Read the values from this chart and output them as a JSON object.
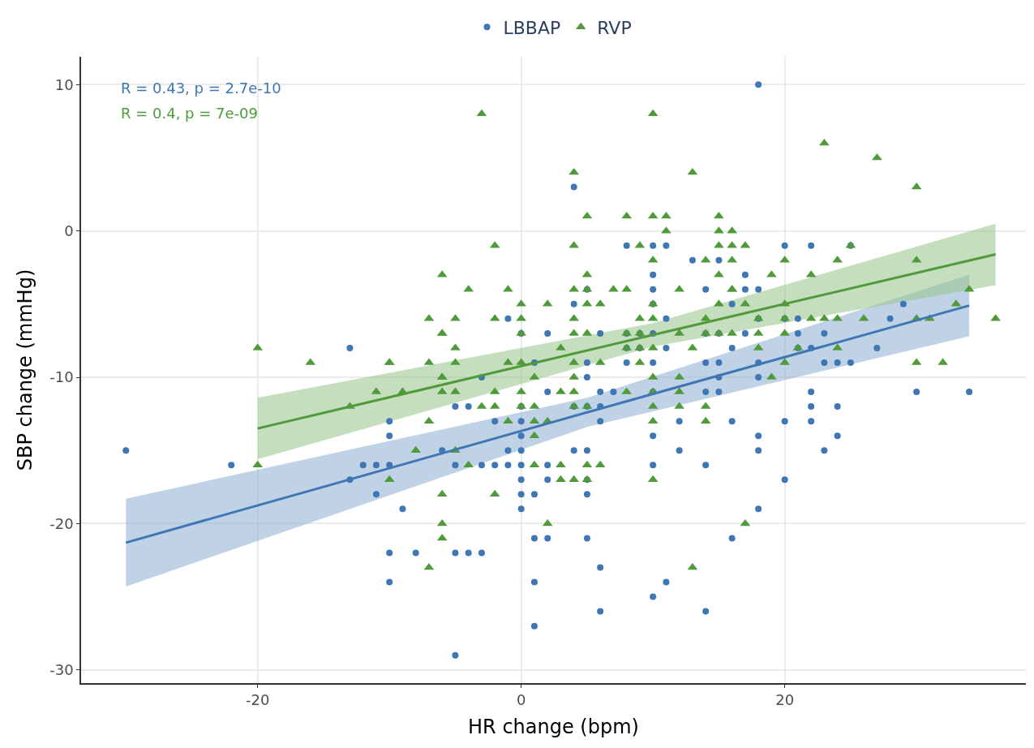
{
  "chart_data": {
    "type": "scatter",
    "xlabel": "HR change (bpm)",
    "ylabel": "SBP change (mmHg)",
    "xlim": [
      -33.4,
      38.3
    ],
    "xticks": [
      -20,
      0,
      20
    ],
    "ylim": [
      -30.9,
      11.9
    ],
    "yticks": [
      -30,
      -20,
      -10,
      0,
      10
    ],
    "grid": true,
    "legend": "top",
    "annotations": [
      "R = 0.43, p = 2.7e-10",
      "R = 0.4, p = 7e-09"
    ],
    "series": [
      {
        "name": "LBBAP",
        "color": "#3f76b4",
        "marker": "circle",
        "x": [
          -30,
          -22,
          -13,
          -13,
          -12,
          -11,
          -11,
          -10,
          -10,
          -10,
          -10,
          -10,
          -9,
          -8,
          -6,
          -5,
          -5,
          -5,
          -5,
          -4,
          -4,
          -3,
          -3,
          -3,
          -2,
          -2,
          -1,
          -1,
          -1,
          0,
          0,
          0,
          0,
          0,
          0,
          0,
          0,
          0,
          1,
          1,
          1,
          1,
          1,
          2,
          2,
          2,
          2,
          2,
          4,
          4,
          4,
          4,
          5,
          5,
          5,
          5,
          5,
          5,
          5,
          5,
          6,
          6,
          6,
          6,
          6,
          6,
          7,
          8,
          8,
          8,
          8,
          9,
          9,
          10,
          10,
          10,
          10,
          10,
          10,
          10,
          10,
          10,
          10,
          11,
          11,
          11,
          11,
          12,
          12,
          13,
          14,
          14,
          14,
          14,
          14,
          14,
          15,
          15,
          15,
          15,
          15,
          16,
          16,
          16,
          16,
          17,
          17,
          17,
          18,
          18,
          18,
          18,
          18,
          18,
          18,
          18,
          20,
          20,
          20,
          20,
          21,
          21,
          21,
          22,
          22,
          22,
          22,
          22,
          23,
          23,
          23,
          24,
          24,
          24,
          25,
          25,
          27,
          28,
          29,
          30,
          34
        ],
        "values": [
          -15,
          -16,
          -8,
          -17,
          -16,
          -16,
          -18,
          -13,
          -14,
          -16,
          -22,
          -24,
          -19,
          -22,
          -15,
          -12,
          -16,
          -22,
          -29,
          -12,
          -22,
          -10,
          -16,
          -22,
          -13,
          -16,
          -6,
          -15,
          -16,
          -7,
          -12,
          -13,
          -14,
          -15,
          -16,
          -17,
          -18,
          -19,
          -9,
          -18,
          -21,
          -24,
          -27,
          -7,
          -11,
          -16,
          -17,
          -21,
          3,
          -5,
          -12,
          -15,
          -4,
          -9,
          -10,
          -12,
          -15,
          -17,
          -18,
          -21,
          -7,
          -11,
          -12,
          -13,
          -23,
          -26,
          -11,
          -1,
          -7,
          -8,
          -9,
          -7,
          -8,
          -1,
          -3,
          -4,
          -5,
          -7,
          -9,
          -11,
          -14,
          -16,
          -25,
          -1,
          -6,
          -8,
          -24,
          -13,
          -15,
          -2,
          -4,
          -7,
          -9,
          -11,
          -16,
          -26,
          -2,
          -7,
          -9,
          -10,
          -11,
          -5,
          -8,
          -13,
          -21,
          -3,
          -4,
          -7,
          10,
          -4,
          -6,
          -9,
          -10,
          -14,
          -15,
          -19,
          -1,
          -6,
          -13,
          -17,
          -6,
          -7,
          -8,
          -1,
          -8,
          -11,
          -12,
          -13,
          -7,
          -9,
          -15,
          -9,
          -12,
          -14,
          -1,
          -9,
          -8,
          -6,
          -5,
          -11,
          -11
        ]
      },
      {
        "name": "RVP",
        "color": "#4f9a3a",
        "marker": "triangle",
        "x": [
          -20,
          -20,
          -16,
          -13,
          -11,
          -10,
          -10,
          -10,
          -9,
          -8,
          -7,
          -7,
          -7,
          -7,
          -6,
          -6,
          -6,
          -6,
          -6,
          -6,
          -6,
          -6,
          -6,
          -5,
          -5,
          -5,
          -5,
          -5,
          -4,
          -4,
          -3,
          -3,
          -2,
          -2,
          -2,
          -2,
          -2,
          -1,
          -1,
          -1,
          0,
          0,
          0,
          0,
          0,
          0,
          1,
          1,
          1,
          1,
          1,
          2,
          2,
          2,
          3,
          3,
          3,
          3,
          4,
          4,
          4,
          4,
          4,
          4,
          4,
          4,
          4,
          4,
          5,
          5,
          5,
          5,
          5,
          5,
          5,
          5,
          6,
          6,
          6,
          7,
          8,
          8,
          8,
          8,
          8,
          9,
          9,
          9,
          9,
          9,
          10,
          10,
          10,
          10,
          10,
          10,
          10,
          10,
          10,
          10,
          10,
          11,
          11,
          12,
          12,
          12,
          12,
          12,
          13,
          13,
          13,
          14,
          14,
          14,
          14,
          14,
          15,
          15,
          15,
          15,
          15,
          15,
          16,
          16,
          16,
          16,
          16,
          16,
          17,
          17,
          17,
          18,
          18,
          18,
          19,
          19,
          20,
          20,
          20,
          20,
          20,
          21,
          22,
          22,
          23,
          23,
          24,
          24,
          24,
          25,
          26,
          27,
          30,
          30,
          30,
          30,
          31,
          32,
          33,
          34,
          36
        ],
        "values": [
          -8,
          -16,
          -9,
          -12,
          -11,
          -9,
          -17,
          -9,
          -11,
          -15,
          -6,
          -9,
          -13,
          -23,
          -3,
          -7,
          -10,
          -11,
          -18,
          -20,
          -21,
          -10,
          -7,
          -6,
          -8,
          -9,
          -11,
          -15,
          -4,
          -16,
          8,
          -12,
          -1,
          -6,
          -11,
          -12,
          -18,
          -4,
          -9,
          -13,
          -5,
          -6,
          -7,
          -9,
          -11,
          -12,
          -10,
          -12,
          -13,
          -14,
          -16,
          -5,
          -13,
          -20,
          -8,
          -11,
          -16,
          -17,
          4,
          -1,
          -4,
          -7,
          -9,
          -10,
          -11,
          -17,
          -12,
          -6,
          1,
          -3,
          -4,
          -5,
          -7,
          -12,
          -16,
          -17,
          -5,
          -9,
          -16,
          -4,
          1,
          -4,
          -7,
          -8,
          -11,
          -1,
          -6,
          -7,
          -8,
          -9,
          8,
          1,
          -5,
          -6,
          -8,
          -10,
          -12,
          -13,
          -17,
          -2,
          -11,
          1,
          0,
          -4,
          -7,
          -10,
          -11,
          -12,
          4,
          -8,
          -23,
          -2,
          -6,
          -7,
          -12,
          -13,
          1,
          0,
          -1,
          -3,
          -5,
          -7,
          0,
          -2,
          -4,
          -7,
          -1,
          -4,
          -1,
          -5,
          -20,
          -7,
          -8,
          -6,
          -3,
          -10,
          -2,
          -5,
          -7,
          -9,
          -6,
          -8,
          -3,
          -6,
          6,
          -6,
          -2,
          -6,
          -8,
          -1,
          -6,
          5,
          3,
          -2,
          -6,
          -9,
          -6,
          -9,
          -5,
          -4,
          -6
        ]
      },
      {
        "color": "#3f76b4",
        "type": "line",
        "marker": "none",
        "x": [
          -30,
          5,
          34
        ],
        "values": [
          -21.3,
          -12.4,
          -5.1
        ],
        "lower": [
          -24.3,
          -13.4,
          -7.2
        ],
        "upper": [
          -18.3,
          -11.4,
          -3.0
        ]
      },
      {
        "color": "#4f9a3a",
        "type": "line",
        "marker": "none",
        "x": [
          -20,
          10,
          36
        ],
        "values": [
          -13.5,
          -7.1,
          -1.6
        ],
        "lower": [
          -15.6,
          -7.9,
          -3.7
        ],
        "upper": [
          -11.4,
          -6.3,
          0.5
        ]
      }
    ]
  }
}
